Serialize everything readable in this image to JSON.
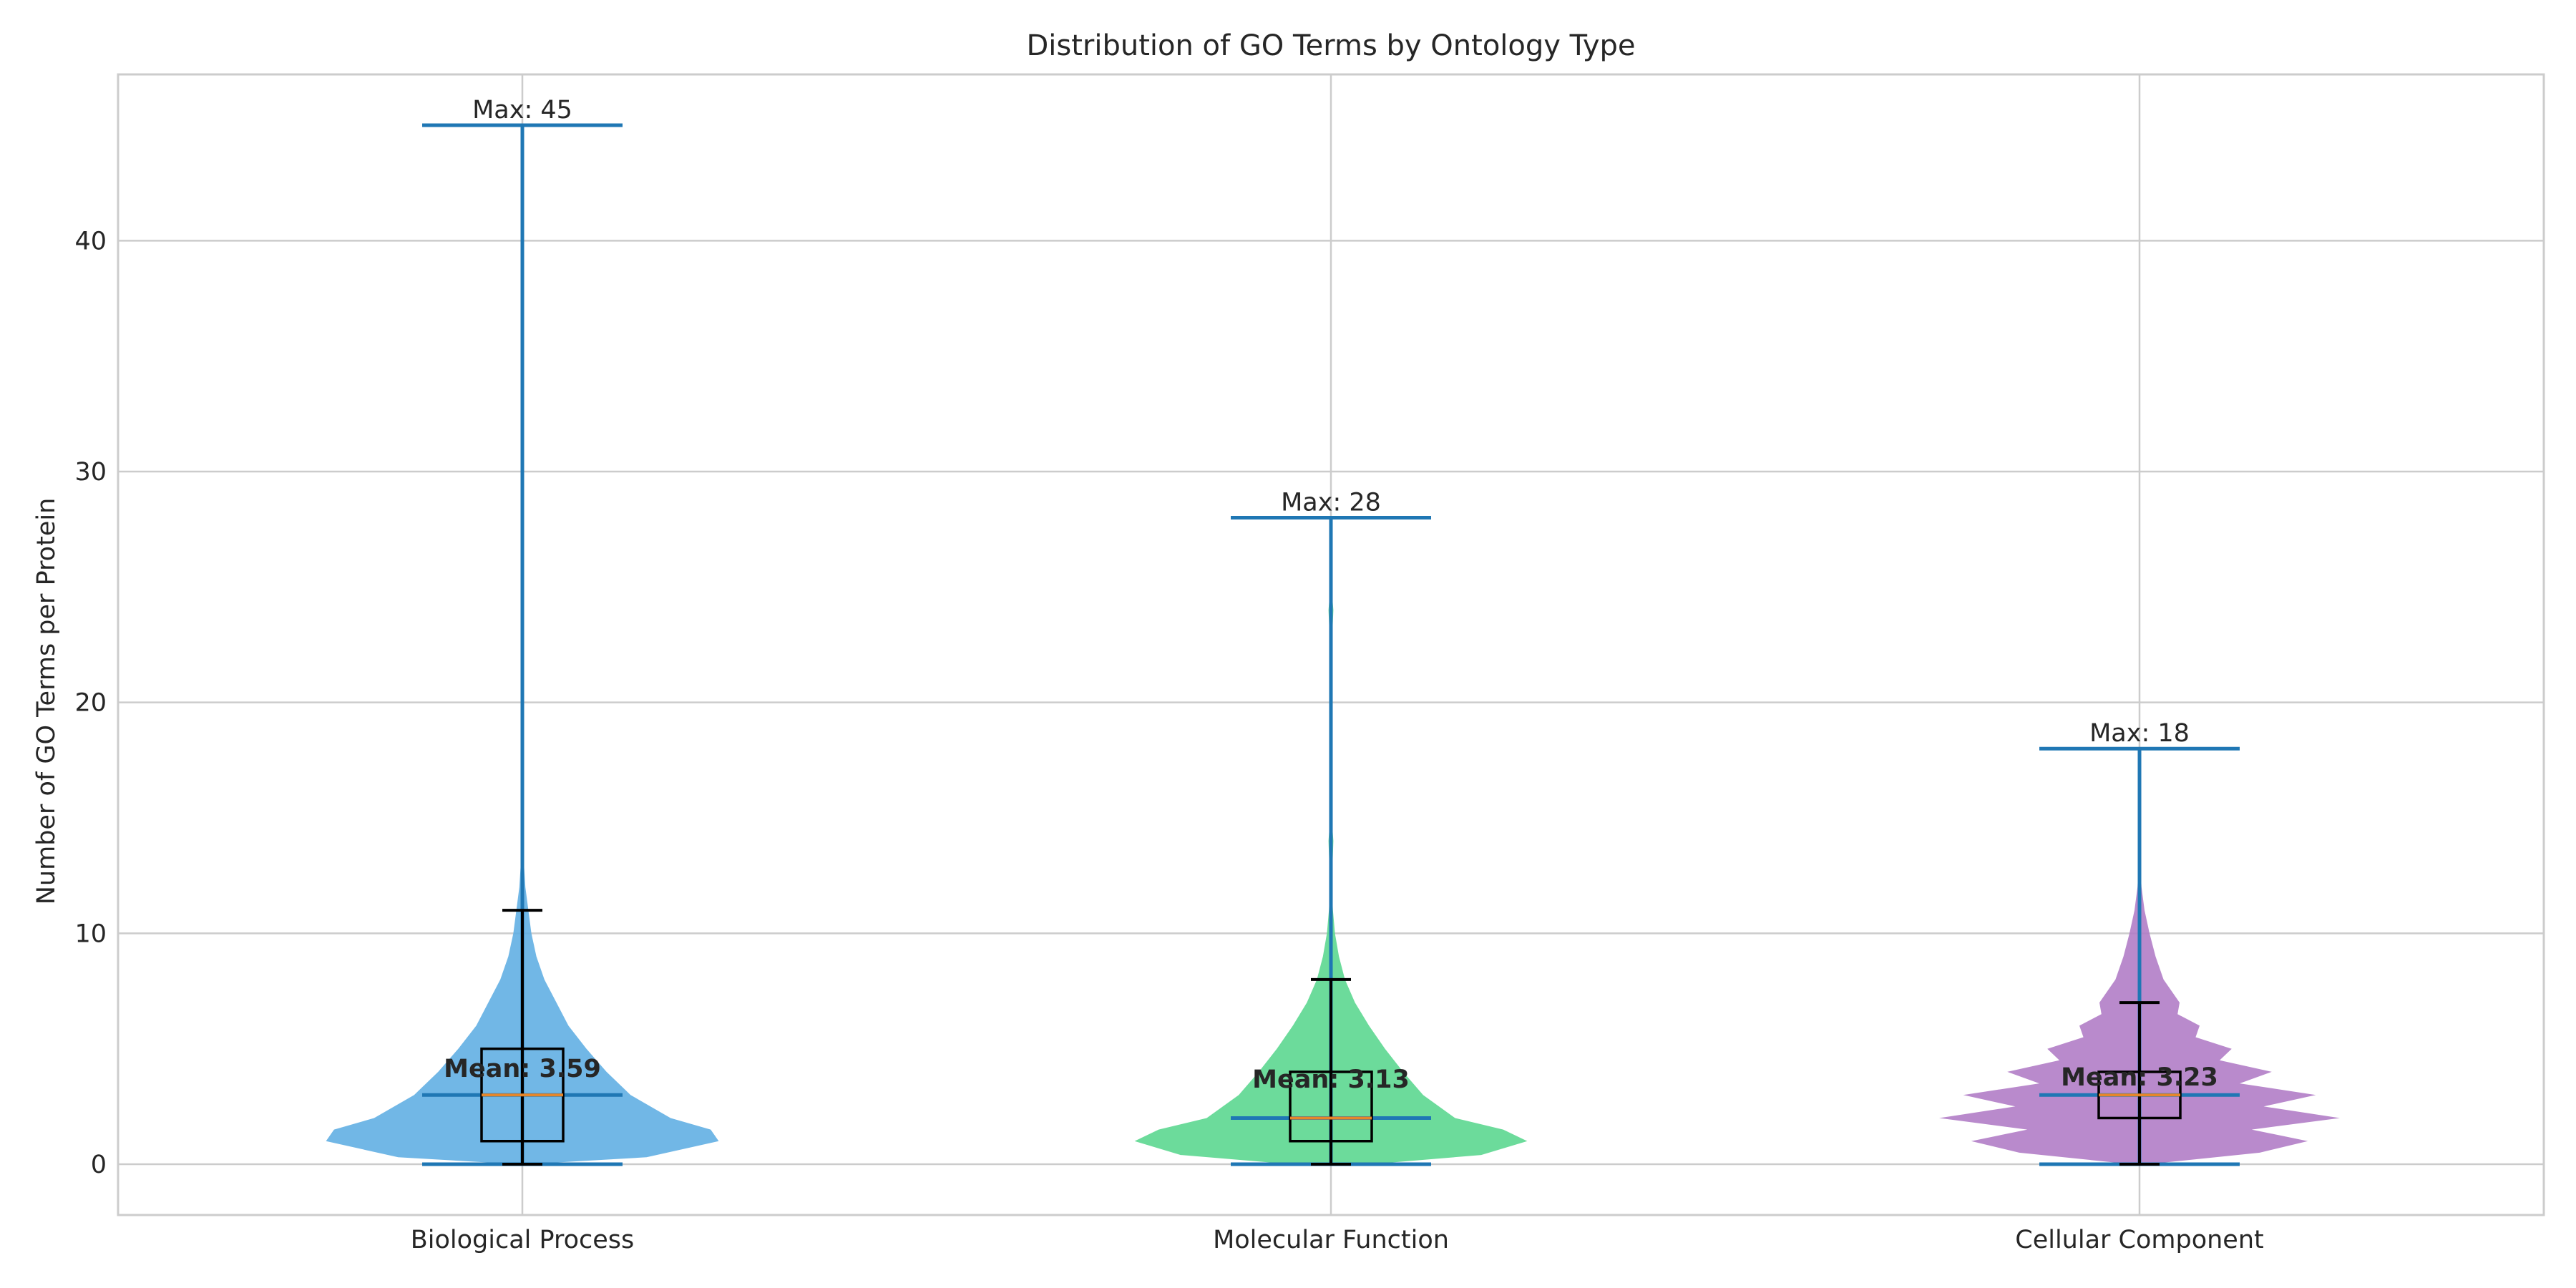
{
  "chart_data": {
    "type": "violin",
    "title": "Distribution of GO Terms by Ontology Type",
    "xlabel": "",
    "ylabel": "Number of GO Terms per Protein",
    "ylim": [
      -2.2,
      47.2
    ],
    "yticks": [
      0,
      10,
      20,
      30,
      40
    ],
    "grid": true,
    "categories": [
      "Biological Process",
      "Molecular Function",
      "Cellular Component"
    ],
    "series": [
      {
        "color": "#5dade2",
        "min": 0,
        "max": 45,
        "median": 3,
        "mean": 3.59,
        "box": {
          "q1": 1,
          "q3": 5,
          "whisker_low": 0,
          "whisker_high": 11
        },
        "max_label": "Max: 45",
        "mean_label": "Mean: 3.59",
        "density": [
          [
            0,
            0.02
          ],
          [
            0.3,
            0.62
          ],
          [
            1,
            0.98
          ],
          [
            1.5,
            0.94
          ],
          [
            2,
            0.74
          ],
          [
            3,
            0.54
          ],
          [
            4,
            0.42
          ],
          [
            5,
            0.32
          ],
          [
            6,
            0.23
          ],
          [
            7,
            0.17
          ],
          [
            8,
            0.11
          ],
          [
            9,
            0.07
          ],
          [
            10,
            0.045
          ],
          [
            11,
            0.03
          ],
          [
            12,
            0.015
          ],
          [
            13,
            0.008
          ],
          [
            14,
            0.005
          ],
          [
            16,
            0.003
          ],
          [
            20,
            0.002
          ],
          [
            45,
            0.001
          ]
        ]
      },
      {
        "color": "#58d68d",
        "min": 0,
        "max": 28,
        "median": 2,
        "mean": 3.13,
        "box": {
          "q1": 1,
          "q3": 4,
          "whisker_low": 0,
          "whisker_high": 8
        },
        "max_label": "Max: 28",
        "mean_label": "Mean: 3.13",
        "density": [
          [
            0,
            0.2
          ],
          [
            0.4,
            0.75
          ],
          [
            1,
            0.98
          ],
          [
            1.5,
            0.86
          ],
          [
            2,
            0.62
          ],
          [
            3,
            0.46
          ],
          [
            4,
            0.36
          ],
          [
            5,
            0.27
          ],
          [
            6,
            0.19
          ],
          [
            7,
            0.12
          ],
          [
            8,
            0.07
          ],
          [
            9,
            0.04
          ],
          [
            10,
            0.02
          ],
          [
            11,
            0.01
          ],
          [
            12,
            0.004
          ],
          [
            14,
            0.012
          ],
          [
            15,
            0.004
          ],
          [
            17,
            0.002
          ],
          [
            22,
            0.002
          ],
          [
            24,
            0.012
          ],
          [
            25,
            0.003
          ],
          [
            28,
            0.001
          ]
        ]
      },
      {
        "color": "#af7ac5",
        "min": 0,
        "max": 18,
        "median": 3,
        "mean": 3.23,
        "box": {
          "q1": 2,
          "q3": 4,
          "whisker_low": 0,
          "whisker_high": 7
        },
        "max_label": "Max: 18",
        "mean_label": "Mean: 3.23",
        "density": [
          [
            0,
            0.04
          ],
          [
            0.5,
            0.6
          ],
          [
            1,
            0.84
          ],
          [
            1.5,
            0.56
          ],
          [
            2,
            1.0
          ],
          [
            2.5,
            0.62
          ],
          [
            3,
            0.88
          ],
          [
            3.5,
            0.5
          ],
          [
            4,
            0.66
          ],
          [
            4.5,
            0.4
          ],
          [
            5,
            0.46
          ],
          [
            5.5,
            0.28
          ],
          [
            6,
            0.3
          ],
          [
            6.5,
            0.19
          ],
          [
            7,
            0.2
          ],
          [
            8,
            0.12
          ],
          [
            9,
            0.08
          ],
          [
            10,
            0.05
          ],
          [
            11,
            0.025
          ],
          [
            12,
            0.01
          ],
          [
            13,
            0.004
          ],
          [
            15,
            0.002
          ],
          [
            18,
            0.001
          ]
        ]
      }
    ],
    "colors": {
      "extrema": "#1f77b4",
      "median_line": "#e6862a",
      "box": "#000000"
    }
  }
}
